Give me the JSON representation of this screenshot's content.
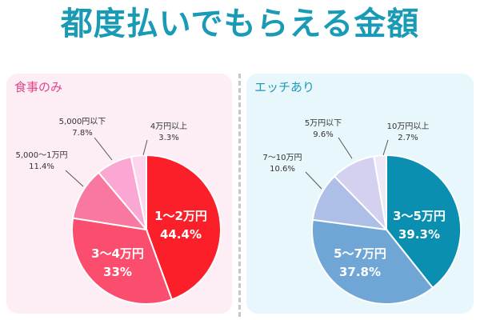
{
  "title": "都度払いでもらえる金額",
  "chart_data": [
    {
      "type": "pie",
      "title": "食事のみ",
      "colors": {
        "panel_bg": "#fdeef6",
        "label": "#e0458a"
      },
      "slices": [
        {
          "label": "1〜2万円",
          "value": 44.4,
          "value_text": "44.4%",
          "color": "#fb1f2a",
          "inside": true
        },
        {
          "label": "3〜4万円",
          "value": 33,
          "value_text": "33%",
          "color": "#fb4e6e",
          "inside": true
        },
        {
          "label": "5,000〜1万円",
          "value": 11.4,
          "value_text": "11.4%",
          "color": "#f9789f",
          "inside": false
        },
        {
          "label": "5,000円以下",
          "value": 7.8,
          "value_text": "7.8%",
          "color": "#fba7d4",
          "inside": false
        },
        {
          "label": "4万円以上",
          "value": 3.3,
          "value_text": "3.3%",
          "color": "#fdd5ec",
          "inside": false
        }
      ]
    },
    {
      "type": "pie",
      "title": "エッチあり",
      "colors": {
        "panel_bg": "#e8f7fb",
        "label": "#1a9bb5"
      },
      "slices": [
        {
          "label": "3〜5万円",
          "value": 39.3,
          "value_text": "39.3%",
          "color": "#0a8fb0",
          "inside": true
        },
        {
          "label": "5〜7万円",
          "value": 37.8,
          "value_text": "37.8%",
          "color": "#6fa6d6",
          "inside": true
        },
        {
          "label": "7〜10万円",
          "value": 10.6,
          "value_text": "10.6%",
          "color": "#adbfe7",
          "inside": false
        },
        {
          "label": "5万円以下",
          "value": 9.6,
          "value_text": "9.6%",
          "color": "#d4d0f0",
          "inside": false
        },
        {
          "label": "10万円以上",
          "value": 2.7,
          "value_text": "2.7%",
          "color": "#ede9f8",
          "inside": false
        }
      ]
    }
  ]
}
